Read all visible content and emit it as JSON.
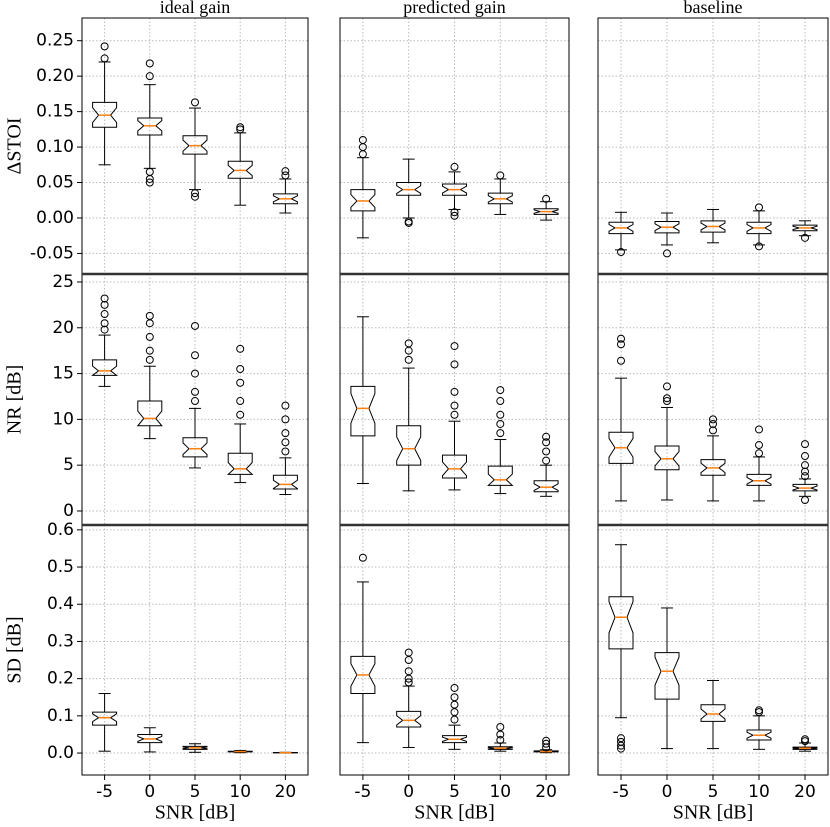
{
  "chart_data": [
    {
      "type": "box",
      "title": "ideal gain",
      "ylabel": "ΔSTOI",
      "grid": true,
      "color": "#000000",
      "median_color": "#ff7f0e",
      "ylim": [
        -0.079,
        0.282
      ],
      "yticks": [
        -0.05,
        {
          "value": 0,
          "label": "0.00"
        },
        0.05,
        {
          "value": 0.1,
          "label": "0.10"
        },
        0.15,
        {
          "value": 0.2,
          "label": "0.20"
        },
        0.25
      ],
      "boxes": [
        {
          "whislo": 0.075,
          "q1": 0.128,
          "med": 0.145,
          "q3": 0.163,
          "whishi": 0.22,
          "fliers": [
            0.225,
            0.242
          ]
        },
        {
          "whislo": 0.07,
          "q1": 0.117,
          "med": 0.13,
          "q3": 0.141,
          "whishi": 0.188,
          "fliers": [
            0.2,
            0.218,
            0.065,
            0.055,
            0.05
          ]
        },
        {
          "whislo": 0.04,
          "q1": 0.09,
          "med": 0.102,
          "q3": 0.116,
          "whishi": 0.155,
          "fliers": [
            0.163,
            0.035,
            0.03
          ]
        },
        {
          "whislo": 0.018,
          "q1": 0.056,
          "med": 0.067,
          "q3": 0.08,
          "whishi": 0.12,
          "fliers": [
            0.125,
            0.128
          ]
        },
        {
          "whislo": 0.007,
          "q1": 0.02,
          "med": 0.027,
          "q3": 0.034,
          "whishi": 0.055,
          "fliers": [
            0.06,
            0.066
          ]
        }
      ]
    },
    {
      "type": "box",
      "title": "predicted gain",
      "grid": true,
      "color": "#000000",
      "median_color": "#ff7f0e",
      "boxes": [
        {
          "whislo": -0.028,
          "q1": 0.01,
          "med": 0.024,
          "q3": 0.04,
          "whishi": 0.085,
          "fliers": [
            0.09,
            0.1,
            0.11
          ]
        },
        {
          "whislo": 0.0,
          "q1": 0.032,
          "med": 0.04,
          "q3": 0.05,
          "whishi": 0.083,
          "fliers": [
            -0.005,
            -0.007
          ]
        },
        {
          "whislo": 0.012,
          "q1": 0.032,
          "med": 0.04,
          "q3": 0.048,
          "whishi": 0.065,
          "fliers": [
            0.072,
            0.008,
            0.003
          ]
        },
        {
          "whislo": 0.005,
          "q1": 0.02,
          "med": 0.027,
          "q3": 0.035,
          "whishi": 0.055,
          "fliers": [
            0.06
          ]
        },
        {
          "whislo": -0.003,
          "q1": 0.005,
          "med": 0.009,
          "q3": 0.013,
          "whishi": 0.023,
          "fliers": [
            0.027
          ]
        }
      ]
    },
    {
      "type": "box",
      "title": "baseline",
      "grid": true,
      "color": "#000000",
      "median_color": "#ff7f0e",
      "boxes": [
        {
          "whislo": -0.045,
          "q1": -0.022,
          "med": -0.014,
          "q3": -0.006,
          "whishi": 0.008,
          "fliers": [
            -0.048
          ]
        },
        {
          "whislo": -0.038,
          "q1": -0.021,
          "med": -0.013,
          "q3": -0.005,
          "whishi": 0.007,
          "fliers": [
            -0.05
          ]
        },
        {
          "whislo": -0.035,
          "q1": -0.02,
          "med": -0.012,
          "q3": -0.004,
          "whishi": 0.012,
          "fliers": []
        },
        {
          "whislo": -0.038,
          "q1": -0.022,
          "med": -0.014,
          "q3": -0.006,
          "whishi": 0.01,
          "fliers": [
            0.015,
            -0.04
          ]
        },
        {
          "whislo": -0.025,
          "q1": -0.018,
          "med": -0.014,
          "q3": -0.01,
          "whishi": -0.004,
          "fliers": [
            -0.028
          ]
        }
      ]
    },
    {
      "type": "box",
      "ylabel": "NR [dB]",
      "grid": true,
      "color": "#000000",
      "median_color": "#ff7f0e",
      "ylim": [
        -1.53,
        25.87
      ],
      "yticks": [
        0,
        5,
        10,
        15,
        20,
        25
      ],
      "boxes": [
        {
          "whislo": 13.6,
          "q1": 14.8,
          "med": 15.3,
          "q3": 16.5,
          "whishi": 19.2,
          "fliers": [
            19.8,
            20.5,
            21.5,
            22.5,
            23.2
          ]
        },
        {
          "whislo": 7.9,
          "q1": 9.3,
          "med": 10.1,
          "q3": 12,
          "whishi": 15.8,
          "fliers": [
            16.5,
            17.5,
            19,
            20.5,
            21.3
          ]
        },
        {
          "whislo": 4.7,
          "q1": 5.9,
          "med": 6.8,
          "q3": 8,
          "whishi": 11.2,
          "fliers": [
            12,
            13,
            15,
            17,
            20.2
          ]
        },
        {
          "whislo": 3.1,
          "q1": 4,
          "med": 4.6,
          "q3": 6.3,
          "whishi": 9.5,
          "fliers": [
            10.5,
            12,
            14,
            15.5,
            17.7
          ]
        },
        {
          "whislo": 1.8,
          "q1": 2.4,
          "med": 2.9,
          "q3": 3.9,
          "whishi": 5.8,
          "fliers": [
            6.5,
            7.5,
            8.5,
            10,
            11.5
          ]
        }
      ]
    },
    {
      "type": "box",
      "grid": true,
      "color": "#000000",
      "median_color": "#ff7f0e",
      "boxes": [
        {
          "whislo": 3,
          "q1": 8.2,
          "med": 11.2,
          "q3": 13.6,
          "whishi": 21.2,
          "fliers": []
        },
        {
          "whislo": 2.2,
          "q1": 5,
          "med": 6.8,
          "q3": 9.3,
          "whishi": 15.6,
          "fliers": [
            16.5,
            17.5,
            18.3
          ]
        },
        {
          "whislo": 2.3,
          "q1": 3.6,
          "med": 4.6,
          "q3": 6.1,
          "whishi": 9.8,
          "fliers": [
            10.5,
            11.5,
            13,
            16,
            18
          ]
        },
        {
          "whislo": 1.9,
          "q1": 2.8,
          "med": 3.4,
          "q3": 4.9,
          "whishi": 7.8,
          "fliers": [
            8.5,
            9.5,
            10.5,
            12,
            13.2
          ]
        },
        {
          "whislo": 1.6,
          "q1": 2.1,
          "med": 2.6,
          "q3": 3.3,
          "whishi": 5,
          "fliers": [
            5.5,
            6.5,
            7.5,
            8.1
          ]
        }
      ]
    },
    {
      "type": "box",
      "grid": true,
      "color": "#000000",
      "median_color": "#ff7f0e",
      "boxes": [
        {
          "whislo": 1.1,
          "q1": 5.2,
          "med": 6.9,
          "q3": 8.6,
          "whishi": 14.5,
          "fliers": [
            16.4,
            18.2,
            18.8
          ]
        },
        {
          "whislo": 1.2,
          "q1": 4.5,
          "med": 5.7,
          "q3": 7.1,
          "whishi": 11.3,
          "fliers": [
            12,
            12.3,
            13.6
          ]
        },
        {
          "whislo": 1.1,
          "q1": 3.9,
          "med": 4.7,
          "q3": 5.6,
          "whishi": 8.2,
          "fliers": [
            8.8,
            9.5,
            10
          ]
        },
        {
          "whislo": 1.1,
          "q1": 2.8,
          "med": 3.3,
          "q3": 4,
          "whishi": 5.9,
          "fliers": [
            6.3,
            7.2,
            8.9
          ]
        },
        {
          "whislo": 1.6,
          "q1": 2.2,
          "med": 2.5,
          "q3": 2.9,
          "whishi": 3.5,
          "fliers": [
            3.8,
            4.3,
            5,
            6,
            7.3,
            1.2
          ]
        }
      ]
    },
    {
      "type": "box",
      "ylabel": "SD [dB]",
      "xlabel": "SNR [dB]",
      "grid": true,
      "color": "#000000",
      "median_color": "#ff7f0e",
      "categories": [
        "-5",
        "0",
        "5",
        "10",
        "20"
      ],
      "ylim": [
        -0.059,
        0.613
      ],
      "yticks": [
        {
          "value": 0,
          "label": "0.0"
        },
        0.1,
        0.2,
        0.3,
        0.4,
        0.5,
        0.6
      ],
      "boxes": [
        {
          "whislo": 0.005,
          "q1": 0.075,
          "med": 0.095,
          "q3": 0.11,
          "whishi": 0.16,
          "fliers": []
        },
        {
          "whislo": 0.003,
          "q1": 0.028,
          "med": 0.038,
          "q3": 0.05,
          "whishi": 0.068,
          "fliers": []
        },
        {
          "whislo": 0.002,
          "q1": 0.01,
          "med": 0.014,
          "q3": 0.018,
          "whishi": 0.025,
          "fliers": []
        },
        {
          "whislo": 0.001,
          "q1": 0.003,
          "med": 0.004,
          "q3": 0.005,
          "whishi": 0.007,
          "fliers": []
        },
        {
          "whislo": 0,
          "q1": 0.0005,
          "med": 0.001,
          "q3": 0.0015,
          "whishi": 0.002,
          "fliers": []
        }
      ]
    },
    {
      "type": "box",
      "xlabel": "SNR [dB]",
      "grid": true,
      "color": "#000000",
      "median_color": "#ff7f0e",
      "categories": [
        "-5",
        "0",
        "5",
        "10",
        "20"
      ],
      "boxes": [
        {
          "whislo": 0.028,
          "q1": 0.16,
          "med": 0.21,
          "q3": 0.26,
          "whishi": 0.46,
          "fliers": [
            0.525
          ]
        },
        {
          "whislo": 0.015,
          "q1": 0.07,
          "med": 0.088,
          "q3": 0.112,
          "whishi": 0.18,
          "fliers": [
            0.19,
            0.2,
            0.22,
            0.25,
            0.27
          ]
        },
        {
          "whislo": 0.01,
          "q1": 0.028,
          "med": 0.037,
          "q3": 0.047,
          "whishi": 0.075,
          "fliers": [
            0.09,
            0.11,
            0.13,
            0.15,
            0.175
          ]
        },
        {
          "whislo": 0.005,
          "q1": 0.01,
          "med": 0.013,
          "q3": 0.017,
          "whishi": 0.027,
          "fliers": [
            0.035,
            0.05,
            0.07
          ]
        },
        {
          "whislo": 0.001,
          "q1": 0.003,
          "med": 0.004,
          "q3": 0.006,
          "whishi": 0.009,
          "fliers": [
            0.015,
            0.025,
            0.033
          ]
        }
      ]
    },
    {
      "type": "box",
      "xlabel": "SNR [dB]",
      "grid": true,
      "color": "#000000",
      "median_color": "#ff7f0e",
      "categories": [
        "-5",
        "0",
        "5",
        "10",
        "20"
      ],
      "boxes": [
        {
          "whislo": 0.095,
          "q1": 0.28,
          "med": 0.365,
          "q3": 0.42,
          "whishi": 0.56,
          "fliers": [
            0.04,
            0.03,
            0.02,
            0.012
          ]
        },
        {
          "whislo": 0.012,
          "q1": 0.145,
          "med": 0.22,
          "q3": 0.27,
          "whishi": 0.39,
          "fliers": []
        },
        {
          "whislo": 0.012,
          "q1": 0.085,
          "med": 0.105,
          "q3": 0.13,
          "whishi": 0.195,
          "fliers": []
        },
        {
          "whislo": 0.01,
          "q1": 0.035,
          "med": 0.048,
          "q3": 0.062,
          "whishi": 0.1,
          "fliers": [
            0.11,
            0.115
          ]
        },
        {
          "whislo": 0.005,
          "q1": 0.01,
          "med": 0.013,
          "q3": 0.016,
          "whishi": 0.027,
          "fliers": [
            0.032,
            0.037
          ]
        }
      ]
    }
  ]
}
